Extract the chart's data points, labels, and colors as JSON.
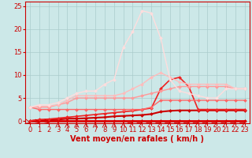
{
  "x": [
    0,
    1,
    2,
    3,
    4,
    5,
    6,
    7,
    8,
    9,
    10,
    11,
    12,
    13,
    14,
    15,
    16,
    17,
    18,
    19,
    20,
    21,
    22,
    23
  ],
  "series": [
    {
      "name": "line_darkred_thick",
      "color": "#dd0000",
      "linewidth": 2.0,
      "marker": "D",
      "markersize": 2.0,
      "values": [
        0,
        0,
        0,
        0,
        0,
        0,
        0,
        0,
        0,
        0,
        0,
        0,
        0,
        0,
        0,
        0,
        0,
        0,
        0,
        0,
        0,
        0,
        0,
        0
      ]
    },
    {
      "name": "line_red_bottom",
      "color": "#cc0000",
      "linewidth": 1.5,
      "marker": "D",
      "markersize": 2.0,
      "values": [
        0,
        0.2,
        0.2,
        0.3,
        0.5,
        0.5,
        0.6,
        0.7,
        0.8,
        1.0,
        1.1,
        1.2,
        1.3,
        1.5,
        2.0,
        2.2,
        2.3,
        2.3,
        2.3,
        2.3,
        2.3,
        2.3,
        2.3,
        2.3
      ]
    },
    {
      "name": "line_red_mid1",
      "color": "#ee2222",
      "linewidth": 1.2,
      "marker": "D",
      "markersize": 2.0,
      "values": [
        0,
        0.3,
        0.4,
        0.6,
        0.8,
        1.0,
        1.2,
        1.4,
        1.6,
        1.8,
        2.0,
        2.2,
        2.5,
        2.8,
        7.0,
        9.0,
        9.5,
        7.5,
        2.5,
        2.5,
        2.5,
        2.5,
        2.5,
        2.5
      ]
    },
    {
      "name": "line_pink_low",
      "color": "#ff6666",
      "linewidth": 1.0,
      "marker": "D",
      "markersize": 2.0,
      "values": [
        3.0,
        2.5,
        2.5,
        2.5,
        2.5,
        2.5,
        2.5,
        2.5,
        2.5,
        2.5,
        2.5,
        2.5,
        2.5,
        3.0,
        4.5,
        4.5,
        4.5,
        4.5,
        4.5,
        4.5,
        4.5,
        4.5,
        4.5,
        4.5
      ]
    },
    {
      "name": "line_pink_mid",
      "color": "#ff9999",
      "linewidth": 1.0,
      "marker": "D",
      "markersize": 2.0,
      "values": [
        3.0,
        3.0,
        3.0,
        3.5,
        4.0,
        5.0,
        5.0,
        5.0,
        5.0,
        5.0,
        5.0,
        5.0,
        5.5,
        6.0,
        6.5,
        7.0,
        7.5,
        7.5,
        7.5,
        7.5,
        7.5,
        7.5,
        7.0,
        7.0
      ]
    },
    {
      "name": "line_pink_mid2",
      "color": "#ffbbbb",
      "linewidth": 1.0,
      "marker": "D",
      "markersize": 2.0,
      "values": [
        3.0,
        3.2,
        3.2,
        3.5,
        4.5,
        5.5,
        5.5,
        5.5,
        5.5,
        5.5,
        6.0,
        7.0,
        8.0,
        9.5,
        10.5,
        9.5,
        8.5,
        8.0,
        8.0,
        8.0,
        8.0,
        8.0,
        7.0,
        7.0
      ]
    },
    {
      "name": "line_lightest_pink",
      "color": "#ffdddd",
      "linewidth": 1.0,
      "marker": "D",
      "markersize": 2.0,
      "values": [
        3.0,
        3.5,
        3.5,
        4.0,
        5.0,
        6.0,
        6.5,
        6.5,
        8.0,
        9.0,
        16.0,
        19.5,
        24.0,
        23.5,
        18.0,
        9.0,
        6.5,
        6.0,
        5.5,
        5.0,
        5.0,
        7.0,
        7.0,
        7.0
      ]
    }
  ],
  "xlabel": "Vent moyen/en rafales ( km/h )",
  "ylim": [
    -0.5,
    26
  ],
  "xlim": [
    -0.5,
    23.5
  ],
  "yticks": [
    0,
    5,
    10,
    15,
    20,
    25
  ],
  "xticks": [
    0,
    1,
    2,
    3,
    4,
    5,
    6,
    7,
    8,
    9,
    10,
    11,
    12,
    13,
    14,
    15,
    16,
    17,
    18,
    19,
    20,
    21,
    22,
    23
  ],
  "bg_color": "#cce8e8",
  "grid_color": "#aacccc",
  "axis_color": "#cc0000",
  "tick_label_color": "#cc0000",
  "xlabel_color": "#cc0000",
  "xlabel_fontsize": 7,
  "tick_fontsize": 6
}
